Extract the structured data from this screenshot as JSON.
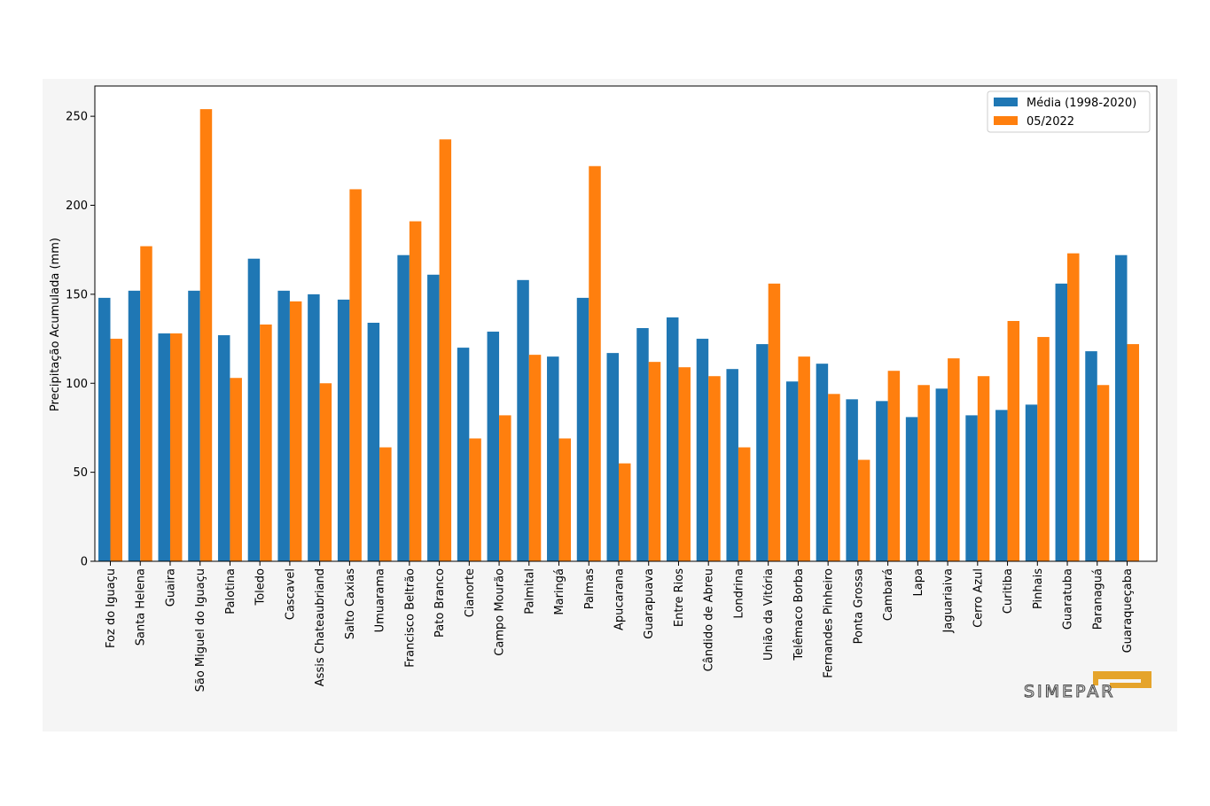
{
  "chart_data": {
    "type": "bar",
    "title": "",
    "xlabel": "",
    "ylabel": "Precipitação Acumulada (mm)",
    "ylim": [
      0,
      267
    ],
    "yticks": [
      0,
      50,
      100,
      150,
      200,
      250
    ],
    "grid": false,
    "legend_position": "top-right",
    "categories": [
      "Foz do Iguaçu",
      "Santa Helena",
      "Guaira",
      "São Miguel do Iguaçu",
      "Palotina",
      "Toledo",
      "Cascavel",
      "Assis Chateaubriand",
      "Salto Caxias",
      "Umuarama",
      "Francisco Beltrão",
      "Pato Branco",
      "Cianorte",
      "Campo Mourão",
      "Palmital",
      "Maringá",
      "Palmas",
      "Apucarana",
      "Guarapuava",
      "Entre Rios",
      "Cândido de Abreu",
      "Londrina",
      "União da Vitória",
      "Telêmaco Borba",
      "Fernandes Pinheiro",
      "Ponta Grossa",
      "Cambará",
      "Lapa",
      "Jaguariaiva",
      "Cerro Azul",
      "Curitiba",
      "Pinhais",
      "Guaratuba",
      "Paranaguá",
      "Guaraqueçaba"
    ],
    "series": [
      {
        "name": "Média (1998-2020)",
        "color": "#1f77b4",
        "values": [
          148,
          152,
          128,
          152,
          127,
          170,
          152,
          150,
          147,
          134,
          172,
          161,
          120,
          129,
          158,
          115,
          148,
          117,
          131,
          137,
          125,
          108,
          122,
          101,
          111,
          91,
          90,
          81,
          97,
          82,
          85,
          88,
          156,
          118,
          172
        ]
      },
      {
        "name": "05/2022",
        "color": "#ff7f0e",
        "values": [
          125,
          177,
          128,
          254,
          103,
          133,
          146,
          100,
          209,
          64,
          191,
          237,
          69,
          82,
          116,
          69,
          222,
          55,
          112,
          109,
          104,
          64,
          156,
          115,
          94,
          57,
          107,
          99,
          114,
          104,
          135,
          126,
          173,
          99,
          122
        ]
      }
    ]
  },
  "logo": {
    "text": "SIMEPAR",
    "accent_color": "#e5a42b"
  }
}
